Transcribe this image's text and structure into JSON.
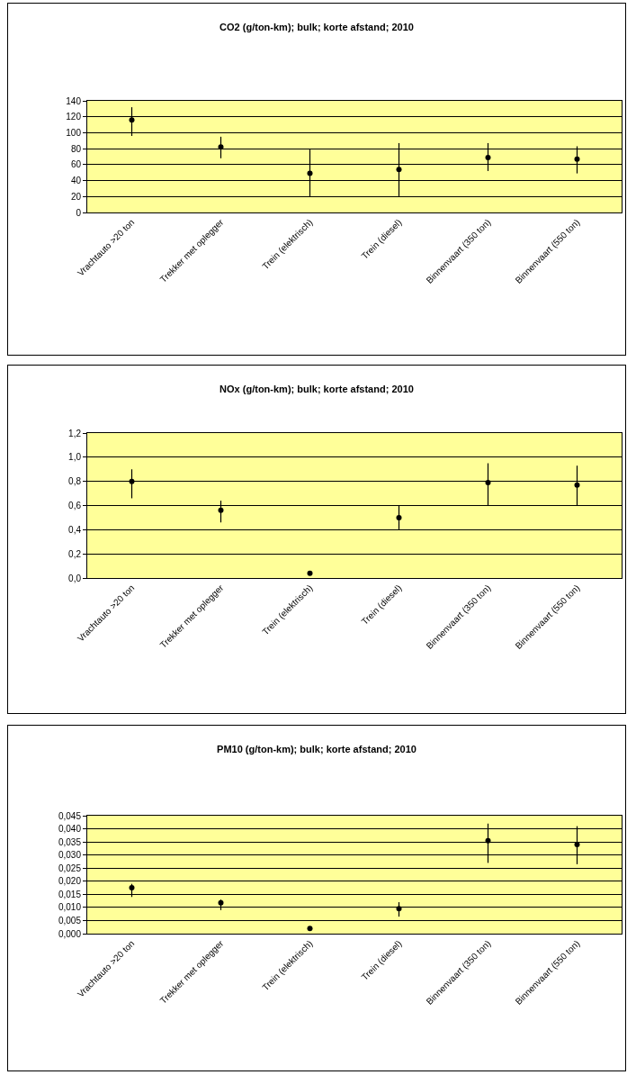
{
  "chart_data": [
    {
      "type": "scatter",
      "title": "CO2 (g/ton-km); bulk; korte afstand; 2010",
      "categories": [
        "Vrachtauto >20 ton",
        "Trekker met oplegger",
        "Trein (elektrisch)",
        "Trein (diesel)",
        "Binnenvaart (350 ton)",
        "Binnenvaart (550 ton)"
      ],
      "series": [
        {
          "color": "#000000",
          "values": [
            116,
            82,
            49,
            54,
            69,
            67
          ],
          "errors": [
            [
              96,
              132
            ],
            [
              68,
              95
            ],
            [
              20,
              80
            ],
            [
              20,
              87
            ],
            [
              52,
              87
            ],
            [
              49,
              83
            ]
          ]
        }
      ],
      "ylim": [
        0,
        140
      ],
      "yticks": [
        0,
        20,
        40,
        60,
        80,
        100,
        120,
        140
      ],
      "grid": "y",
      "marker": "circle"
    },
    {
      "type": "scatter",
      "title": "NOx (g/ton-km); bulk; korte afstand; 2010",
      "categories": [
        "Vrachtauto >20 ton",
        "Trekker met oplegger",
        "Trein (elektrisch)",
        "Trein (diesel)",
        "Binnenvaart (350 ton)",
        "Binnenvaart (550 ton)"
      ],
      "series": [
        {
          "color": "#000000",
          "values": [
            0.8,
            0.56,
            0.04,
            0.5,
            0.79,
            0.77
          ],
          "errors": [
            [
              0.66,
              0.9
            ],
            [
              0.46,
              0.64
            ],
            null,
            [
              0.4,
              0.6
            ],
            [
              0.6,
              0.95
            ],
            [
              0.6,
              0.93
            ]
          ]
        }
      ],
      "ylim": [
        0,
        1.2
      ],
      "yticks": [
        {
          "value": 0,
          "label": "0,0"
        },
        {
          "value": 0.2,
          "label": "0,2"
        },
        {
          "value": 0.4,
          "label": "0,4"
        },
        {
          "value": 0.6,
          "label": "0,6"
        },
        {
          "value": 0.8,
          "label": "0,8"
        },
        {
          "value": 1,
          "label": "1,0"
        },
        {
          "value": 1.2,
          "label": "1,2"
        }
      ],
      "grid": "y",
      "marker": "circle"
    },
    {
      "type": "scatter",
      "title": "PM10 (g/ton-km); bulk; korte afstand; 2010",
      "categories": [
        "Vrachtauto >20 ton",
        "Trekker met oplegger",
        "Trein (elektrisch)",
        "Trein (diesel)",
        "Binnenvaart (350 ton)",
        "Binnenvaart (550 ton)"
      ],
      "series": [
        {
          "color": "#000000",
          "values": [
            0.0175,
            0.0118,
            0.002,
            0.0095,
            0.0355,
            0.034
          ],
          "errors": [
            [
              0.014,
              0.019
            ],
            [
              0.009,
              0.013
            ],
            null,
            [
              0.0065,
              0.012
            ],
            [
              0.027,
              0.042
            ],
            [
              0.0265,
              0.041
            ]
          ]
        }
      ],
      "ylim": [
        0,
        0.045
      ],
      "yticks": [
        {
          "value": 0,
          "label": "0,000"
        },
        {
          "value": 0.005,
          "label": "0,005"
        },
        {
          "value": 0.01,
          "label": "0,010"
        },
        {
          "value": 0.015,
          "label": "0,015"
        },
        {
          "value": 0.02,
          "label": "0,020"
        },
        {
          "value": 0.025,
          "label": "0,025"
        },
        {
          "value": 0.03,
          "label": "0,030"
        },
        {
          "value": 0.035,
          "label": "0,035"
        },
        {
          "value": 0.04,
          "label": "0,040"
        },
        {
          "value": 0.045,
          "label": "0,045"
        }
      ],
      "grid": "y",
      "marker": "circle"
    }
  ]
}
